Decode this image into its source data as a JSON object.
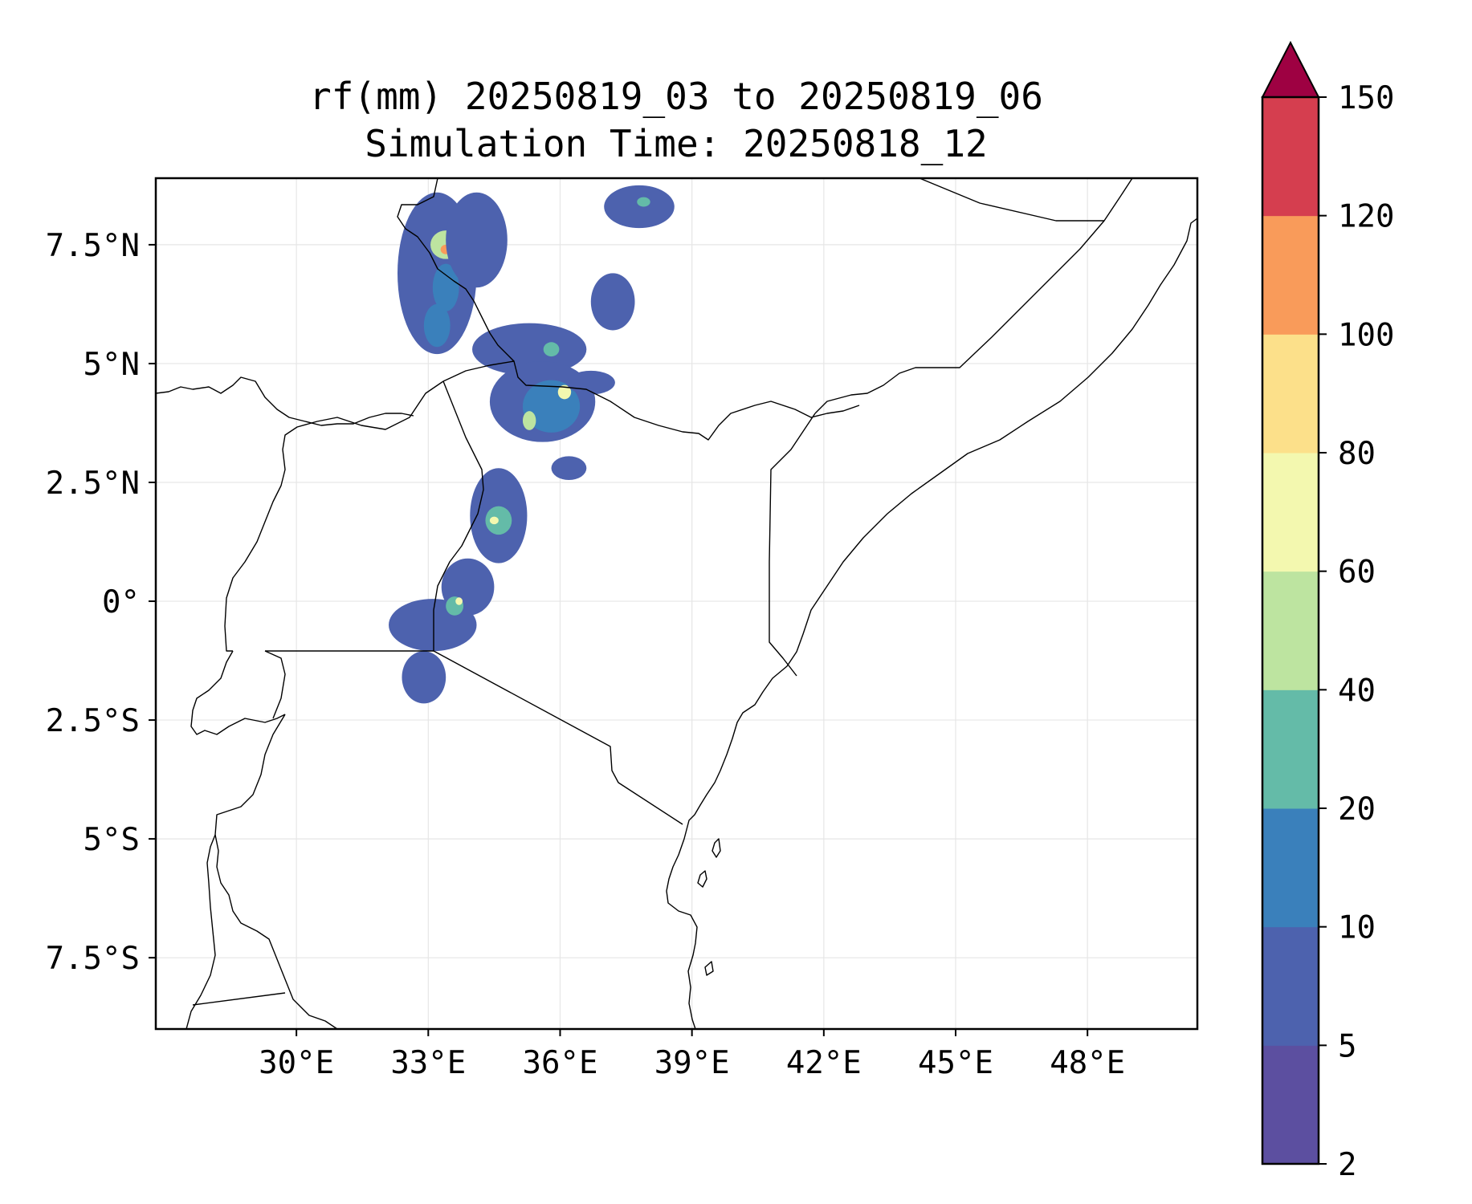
{
  "title_line1": "rf(mm) 20250819_03 to 20250819_06",
  "title_line2": "Simulation Time: 20250818_12",
  "map": {
    "lon_range": [
      26.8,
      50.5
    ],
    "lat_range": [
      -9.0,
      8.9
    ],
    "lon_ticks": [
      {
        "value": 30,
        "label": "30°E"
      },
      {
        "value": 33,
        "label": "33°E"
      },
      {
        "value": 36,
        "label": "36°E"
      },
      {
        "value": 39,
        "label": "39°E"
      },
      {
        "value": 42,
        "label": "42°E"
      },
      {
        "value": 45,
        "label": "45°E"
      },
      {
        "value": 48,
        "label": "48°E"
      }
    ],
    "lat_ticks": [
      {
        "value": 7.5,
        "label": "7.5°N"
      },
      {
        "value": 5,
        "label": "5°N"
      },
      {
        "value": 2.5,
        "label": "2.5°N"
      },
      {
        "value": 0,
        "label": "0°"
      },
      {
        "value": -2.5,
        "label": "2.5°S"
      },
      {
        "value": -5,
        "label": "5°S"
      },
      {
        "value": -7.5,
        "label": "7.5°S"
      }
    ],
    "gridlines": true
  },
  "colorbar": {
    "levels": [
      2,
      5,
      10,
      20,
      40,
      60,
      80,
      100,
      120,
      150
    ],
    "colors": [
      "#5c4fa0",
      "#4d62ae",
      "#3a80bb",
      "#64bba8",
      "#bde4a0",
      "#f3f8af",
      "#fce08a",
      "#f99b5a",
      "#d53e4f"
    ],
    "extend_color": "#9e0142",
    "extend": "max"
  },
  "chart_data": {
    "type": "heatmap",
    "title": "rf(mm) 20250819_03 to 20250819_06\nSimulation Time: 20250818_12",
    "xlim": [
      26.8,
      50.5
    ],
    "ylim": [
      -9.0,
      8.9
    ],
    "xticks": [
      "30°E",
      "33°E",
      "36°E",
      "39°E",
      "42°E",
      "45°E",
      "48°E"
    ],
    "yticks": [
      "7.5°N",
      "5°N",
      "2.5°N",
      "0°",
      "2.5°S",
      "5°S",
      "7.5°S"
    ],
    "colorbar_levels": [
      2,
      5,
      10,
      20,
      40,
      60,
      80,
      100,
      120,
      150
    ],
    "rain_cells": [
      {
        "lon": 33.2,
        "lat": 6.9,
        "rx": 0.9,
        "ry": 1.7,
        "level": 5
      },
      {
        "lon": 33.4,
        "lat": 7.5,
        "rx": 0.35,
        "ry": 0.3,
        "level": 40
      },
      {
        "lon": 33.4,
        "lat": 7.4,
        "rx": 0.12,
        "ry": 0.1,
        "level": 100
      },
      {
        "lon": 33.4,
        "lat": 6.6,
        "rx": 0.3,
        "ry": 0.5,
        "level": 10
      },
      {
        "lon": 33.2,
        "lat": 5.8,
        "rx": 0.3,
        "ry": 0.45,
        "level": 10
      },
      {
        "lon": 34.1,
        "lat": 7.6,
        "rx": 0.7,
        "ry": 1.0,
        "level": 5
      },
      {
        "lon": 35.3,
        "lat": 5.3,
        "rx": 1.3,
        "ry": 0.55,
        "level": 5
      },
      {
        "lon": 35.8,
        "lat": 5.3,
        "rx": 0.18,
        "ry": 0.15,
        "level": 20
      },
      {
        "lon": 35.6,
        "lat": 4.2,
        "rx": 1.2,
        "ry": 0.85,
        "level": 5
      },
      {
        "lon": 35.8,
        "lat": 4.1,
        "rx": 0.65,
        "ry": 0.55,
        "level": 10
      },
      {
        "lon": 36.1,
        "lat": 4.4,
        "rx": 0.15,
        "ry": 0.15,
        "level": 60
      },
      {
        "lon": 35.3,
        "lat": 3.8,
        "rx": 0.15,
        "ry": 0.2,
        "level": 40
      },
      {
        "lon": 36.7,
        "lat": 4.6,
        "rx": 0.55,
        "ry": 0.25,
        "level": 5
      },
      {
        "lon": 37.8,
        "lat": 8.3,
        "rx": 0.8,
        "ry": 0.45,
        "level": 5
      },
      {
        "lon": 37.9,
        "lat": 8.4,
        "rx": 0.15,
        "ry": 0.1,
        "level": 20
      },
      {
        "lon": 34.6,
        "lat": 1.8,
        "rx": 0.65,
        "ry": 1.0,
        "level": 5
      },
      {
        "lon": 34.6,
        "lat": 1.7,
        "rx": 0.3,
        "ry": 0.3,
        "level": 20
      },
      {
        "lon": 34.5,
        "lat": 1.7,
        "rx": 0.1,
        "ry": 0.08,
        "level": 60
      },
      {
        "lon": 33.9,
        "lat": 0.3,
        "rx": 0.6,
        "ry": 0.6,
        "level": 5
      },
      {
        "lon": 33.1,
        "lat": -0.5,
        "rx": 1.0,
        "ry": 0.55,
        "level": 5
      },
      {
        "lon": 33.6,
        "lat": -0.1,
        "rx": 0.2,
        "ry": 0.2,
        "level": 20
      },
      {
        "lon": 33.7,
        "lat": 0.0,
        "rx": 0.08,
        "ry": 0.08,
        "level": 60
      },
      {
        "lon": 32.9,
        "lat": -1.6,
        "rx": 0.5,
        "ry": 0.55,
        "level": 5
      },
      {
        "lon": 37.2,
        "lat": 6.3,
        "rx": 0.5,
        "ry": 0.6,
        "level": 5
      },
      {
        "lon": 36.2,
        "lat": 2.8,
        "rx": 0.4,
        "ry": 0.25,
        "level": 5
      }
    ]
  }
}
